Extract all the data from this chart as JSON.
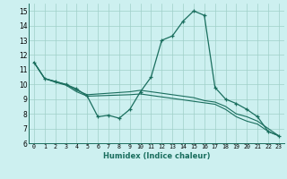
{
  "xlabel": "Humidex (Indice chaleur)",
  "bg_color": "#cdf0f0",
  "grid_color": "#a0d0c8",
  "line_color": "#1a6e5e",
  "xlim": [
    -0.5,
    23.5
  ],
  "ylim": [
    6,
    15.5
  ],
  "xticks": [
    0,
    1,
    2,
    3,
    4,
    5,
    6,
    7,
    8,
    9,
    10,
    11,
    12,
    13,
    14,
    15,
    16,
    17,
    18,
    19,
    20,
    21,
    22,
    23
  ],
  "yticks": [
    6,
    7,
    8,
    9,
    10,
    11,
    12,
    13,
    14,
    15
  ],
  "lines": [
    {
      "x": [
        0,
        1,
        2,
        3,
        4,
        5,
        6,
        7,
        8,
        9,
        10,
        11,
        12,
        13,
        14,
        15,
        16,
        17,
        18,
        19,
        20,
        21,
        22,
        23
      ],
      "y": [
        11.5,
        10.4,
        10.2,
        10.0,
        9.7,
        9.2,
        7.8,
        7.9,
        7.7,
        8.3,
        9.5,
        10.5,
        13.0,
        13.3,
        14.3,
        15.0,
        14.7,
        9.8,
        9.0,
        8.7,
        8.3,
        7.8,
        6.8,
        6.5
      ],
      "marker": true
    },
    {
      "x": [
        0,
        1,
        2,
        3,
        4,
        5,
        9,
        10,
        11,
        12,
        13,
        14,
        15,
        16,
        17,
        18,
        19,
        20,
        21,
        22,
        23
      ],
      "y": [
        11.5,
        10.4,
        10.2,
        10.0,
        9.6,
        9.3,
        9.5,
        9.6,
        9.5,
        9.4,
        9.3,
        9.2,
        9.1,
        8.9,
        8.8,
        8.5,
        8.0,
        7.8,
        7.5,
        7.0,
        6.5
      ],
      "marker": false
    },
    {
      "x": [
        0,
        1,
        2,
        3,
        4,
        5,
        9,
        10,
        11,
        12,
        13,
        14,
        15,
        16,
        17,
        18,
        19,
        20,
        21,
        22,
        23
      ],
      "y": [
        11.5,
        10.4,
        10.15,
        9.95,
        9.5,
        9.2,
        9.3,
        9.35,
        9.25,
        9.15,
        9.05,
        8.95,
        8.85,
        8.75,
        8.65,
        8.3,
        7.8,
        7.5,
        7.3,
        6.8,
        6.5
      ],
      "marker": false
    }
  ]
}
